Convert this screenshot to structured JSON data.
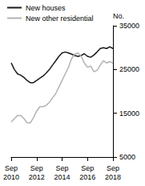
{
  "chart_data": {
    "type": "line",
    "y_label": "No.",
    "categories": [
      "Sep 2010",
      null,
      null,
      null,
      null,
      null,
      null,
      null,
      "Sep 2012",
      null,
      null,
      null,
      null,
      null,
      null,
      null,
      "Sep 2014",
      null,
      null,
      null,
      null,
      null,
      null,
      null,
      "Sep 2016",
      null,
      null,
      null,
      null,
      null,
      null,
      null,
      "Sep 2018"
    ],
    "series": [
      {
        "name": "New houses",
        "color": "#1a1a1a",
        "values": [
          26500,
          25000,
          24000,
          23700,
          23200,
          22500,
          22000,
          22000,
          22500,
          23000,
          23500,
          24200,
          25000,
          26000,
          27000,
          28000,
          28800,
          29000,
          28800,
          28500,
          28200,
          28000,
          28200,
          28600,
          28000,
          27800,
          28300,
          29000,
          29800,
          30000,
          29800,
          30200,
          29800
        ]
      },
      {
        "name": "New other residential",
        "color": "#b3b3b3",
        "values": [
          13000,
          13800,
          14500,
          14500,
          13800,
          12800,
          12800,
          14000,
          15500,
          16500,
          16500,
          16800,
          17500,
          18500,
          19500,
          21000,
          22500,
          24000,
          25500,
          27500,
          28500,
          28800,
          28000,
          26500,
          25500,
          25800,
          24500,
          24800,
          26000,
          27000,
          26500,
          26800,
          26500
        ]
      }
    ],
    "ylim": [
      5000,
      35000
    ],
    "yticks": [
      5000,
      15000,
      25000,
      35000
    ],
    "grid": false,
    "legend": "top-left"
  }
}
